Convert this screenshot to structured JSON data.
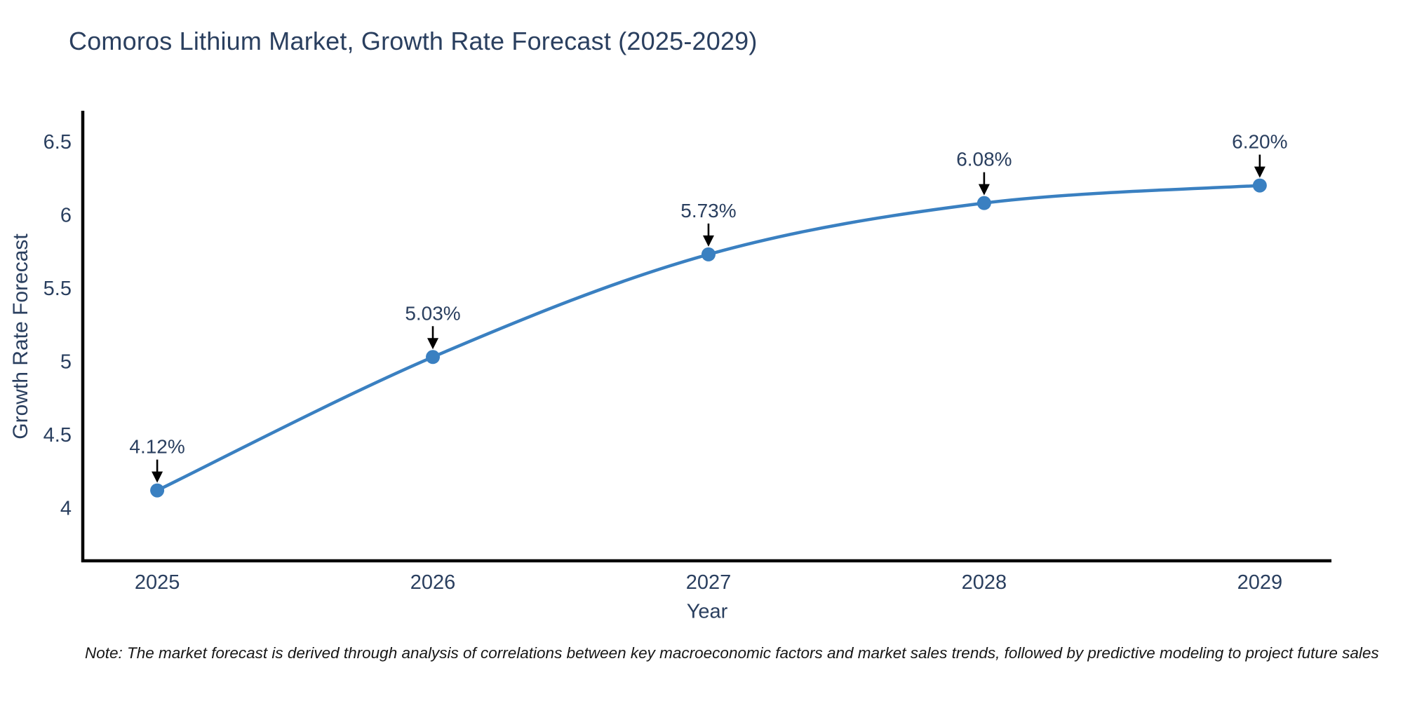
{
  "header": {
    "title": "Comoros Lithium Market, Growth Rate Forecast (2025-2029)"
  },
  "footnote": "Note: The market forecast is derived through analysis of correlations between key macroeconomic factors and market sales trends, followed by predictive modeling to project future sales",
  "chart_data": {
    "type": "line",
    "title": "Comoros Lithium Market, Growth Rate Forecast (2025-2029)",
    "xlabel": "Year",
    "ylabel": "Growth Rate Forecast",
    "x": [
      2025,
      2026,
      2027,
      2028,
      2029
    ],
    "values": [
      4.12,
      5.03,
      5.73,
      6.08,
      6.2
    ],
    "point_labels": [
      "4.12%",
      "5.03%",
      "5.73%",
      "6.08%",
      "6.20%"
    ],
    "x_tick_labels": [
      "2025",
      "2026",
      "2027",
      "2028",
      "2029"
    ],
    "y_ticks": [
      4,
      4.5,
      5,
      5.5,
      6,
      6.5
    ],
    "y_tick_labels": [
      "4",
      "4.5",
      "5",
      "5.5",
      "6",
      "6.5"
    ],
    "xlim": [
      2024.73,
      2029.26
    ],
    "ylim": [
      3.64,
      6.7
    ],
    "grid": false,
    "legend": false,
    "line_shape": "spline",
    "colors": {
      "line": "#3a80c1",
      "marker": "#3a80c1",
      "text": "#2a3f5f",
      "axis": "#000000",
      "annotation_arrow": "#000000",
      "note_text": "#161616"
    }
  }
}
